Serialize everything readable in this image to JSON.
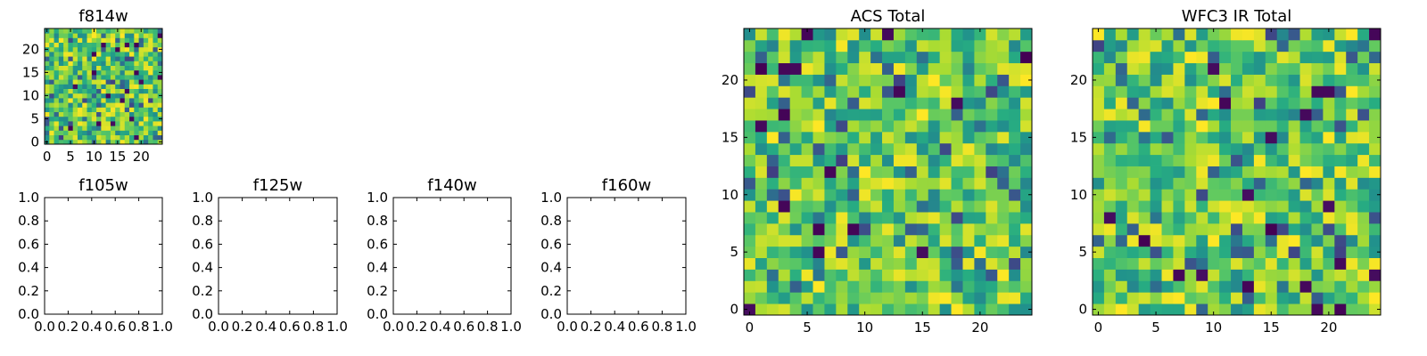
{
  "chart_data": [
    {
      "type": "heatmap",
      "title": "f814w",
      "grid_size": 25,
      "xlim": [
        -0.5,
        24.5
      ],
      "ylim": [
        -0.5,
        24.5
      ],
      "xticks": [
        0,
        5,
        10,
        15,
        20
      ],
      "yticks": [
        0,
        5,
        10,
        15,
        20
      ],
      "xticklabels": [
        "0",
        "5",
        "10",
        "15",
        "20"
      ],
      "yticklabels": [
        "0",
        "5",
        "10",
        "15",
        "20"
      ],
      "colormap": "viridis",
      "seed": 814,
      "values": []
    },
    {
      "type": "heatmap",
      "title": "f105w",
      "empty": true,
      "xlim": [
        0,
        1
      ],
      "ylim": [
        0,
        1
      ],
      "xticks": [
        0,
        0.2,
        0.4,
        0.6,
        0.8,
        1.0
      ],
      "yticks": [
        0,
        0.2,
        0.4,
        0.6,
        0.8,
        1.0
      ],
      "xticklabels": [
        "0.0",
        "0.2",
        "0.4",
        "0.6",
        "0.8",
        "1.0"
      ],
      "yticklabels": [
        "0.0",
        "0.2",
        "0.4",
        "0.6",
        "0.8",
        "1.0"
      ]
    },
    {
      "type": "heatmap",
      "title": "f125w",
      "empty": true,
      "xlim": [
        0,
        1
      ],
      "ylim": [
        0,
        1
      ],
      "xticks": [
        0,
        0.2,
        0.4,
        0.6,
        0.8,
        1.0
      ],
      "yticks": [
        0,
        0.2,
        0.4,
        0.6,
        0.8,
        1.0
      ],
      "xticklabels": [
        "0.0",
        "0.2",
        "0.4",
        "0.6",
        "0.8",
        "1.0"
      ],
      "yticklabels": [
        "0.0",
        "0.2",
        "0.4",
        "0.6",
        "0.8",
        "1.0"
      ]
    },
    {
      "type": "heatmap",
      "title": "f140w",
      "empty": true,
      "xlim": [
        0,
        1
      ],
      "ylim": [
        0,
        1
      ],
      "xticks": [
        0,
        0.2,
        0.4,
        0.6,
        0.8,
        1.0
      ],
      "yticks": [
        0,
        0.2,
        0.4,
        0.6,
        0.8,
        1.0
      ],
      "xticklabels": [
        "0.0",
        "0.2",
        "0.4",
        "0.6",
        "0.8",
        "1.0"
      ],
      "yticklabels": [
        "0.0",
        "0.2",
        "0.4",
        "0.6",
        "0.8",
        "1.0"
      ]
    },
    {
      "type": "heatmap",
      "title": "f160w",
      "empty": true,
      "xlim": [
        0,
        1
      ],
      "ylim": [
        0,
        1
      ],
      "xticks": [
        0,
        0.2,
        0.4,
        0.6,
        0.8,
        1.0
      ],
      "yticks": [
        0,
        0.2,
        0.4,
        0.6,
        0.8,
        1.0
      ],
      "xticklabels": [
        "0.0",
        "0.2",
        "0.4",
        "0.6",
        "0.8",
        "1.0"
      ],
      "yticklabels": [
        "0.0",
        "0.2",
        "0.4",
        "0.6",
        "0.8",
        "1.0"
      ]
    },
    {
      "type": "heatmap",
      "title": "ACS Total",
      "grid_size": 25,
      "xlim": [
        -0.5,
        24.5
      ],
      "ylim": [
        -0.5,
        24.5
      ],
      "xticks": [
        0,
        5,
        10,
        15,
        20
      ],
      "yticks": [
        0,
        5,
        10,
        15,
        20
      ],
      "xticklabels": [
        "0",
        "5",
        "10",
        "15",
        "20"
      ],
      "yticklabels": [
        "0",
        "5",
        "10",
        "15",
        "20"
      ],
      "colormap": "viridis",
      "seed": 2001,
      "values": []
    },
    {
      "type": "heatmap",
      "title": "WFC3 IR Total",
      "grid_size": 25,
      "xlim": [
        -0.5,
        24.5
      ],
      "ylim": [
        -0.5,
        24.5
      ],
      "xticks": [
        0,
        5,
        10,
        15,
        20
      ],
      "yticks": [
        0,
        5,
        10,
        15,
        20
      ],
      "xticklabels": [
        "0",
        "5",
        "10",
        "15",
        "20"
      ],
      "yticklabels": [
        "0",
        "5",
        "10",
        "15",
        "20"
      ],
      "colormap": "viridis",
      "seed": 3003,
      "values": []
    }
  ]
}
